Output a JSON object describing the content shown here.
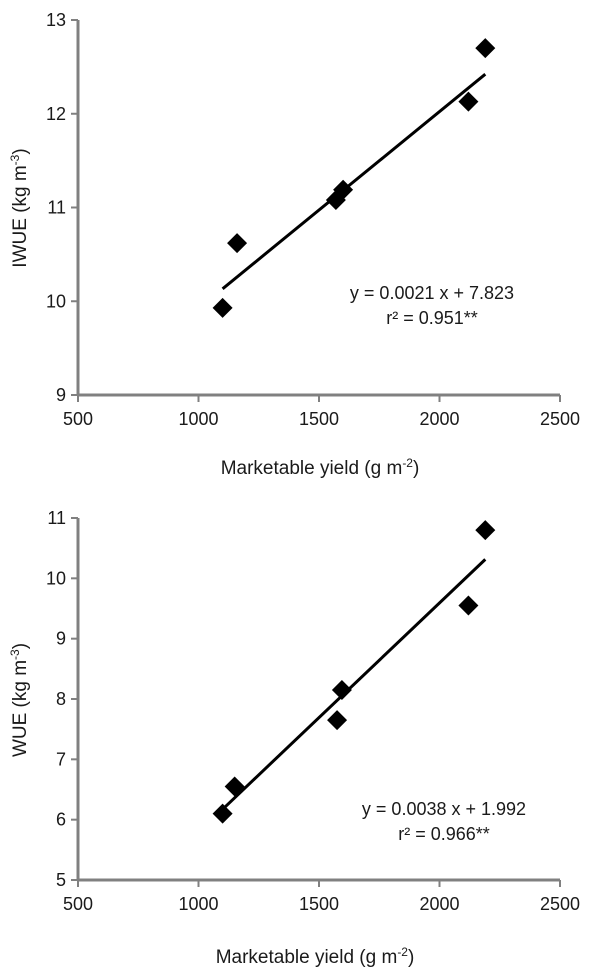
{
  "chart_data": [
    {
      "type": "scatter",
      "title": "",
      "xlabel": "Marketable yield (g m",
      "xlabel_sup": "-2",
      "xlabel_end": ")",
      "ylabel": "IWUE (kg m",
      "ylabel_sup": "-3",
      "ylabel_end": ")",
      "xlim": [
        500,
        2500
      ],
      "ylim": [
        9,
        13
      ],
      "xticks": [
        500,
        1000,
        1500,
        2000,
        2500
      ],
      "yticks": [
        9,
        10,
        11,
        12,
        13
      ],
      "series": [
        {
          "x": [
            1100,
            1160,
            1570,
            1600,
            2120,
            2190
          ],
          "y": [
            9.93,
            10.62,
            11.08,
            11.19,
            12.13,
            12.7
          ]
        }
      ],
      "fit": {
        "slope": 0.0021,
        "intercept": 7.823,
        "x_range": [
          1100,
          2190
        ]
      },
      "equation": "y = 0.0021 x + 7.823",
      "r2": "r² = 0.951**",
      "grid": false,
      "marker": "diamond",
      "color": "#000000"
    },
    {
      "type": "scatter",
      "title": "",
      "xlabel": "Marketable yield (g m",
      "xlabel_sup": "-2",
      "xlabel_end": ")",
      "ylabel": "WUE (kg m",
      "ylabel_sup": "-3",
      "ylabel_end": ")",
      "xlim": [
        500,
        2500
      ],
      "ylim": [
        5,
        11
      ],
      "xticks": [
        500,
        1000,
        1500,
        2000,
        2500
      ],
      "yticks": [
        5,
        6,
        7,
        8,
        9,
        10,
        11
      ],
      "series": [
        {
          "x": [
            1100,
            1150,
            1575,
            1595,
            2120,
            2190
          ],
          "y": [
            6.1,
            6.55,
            7.65,
            8.15,
            9.55,
            10.8
          ]
        }
      ],
      "fit": {
        "slope": 0.0038,
        "intercept": 1.992,
        "x_range": [
          1100,
          2190
        ]
      },
      "equation": "y = 0.0038 x + 1.992",
      "r2": "r² = 0.966**",
      "grid": false,
      "marker": "diamond",
      "color": "#000000"
    }
  ]
}
